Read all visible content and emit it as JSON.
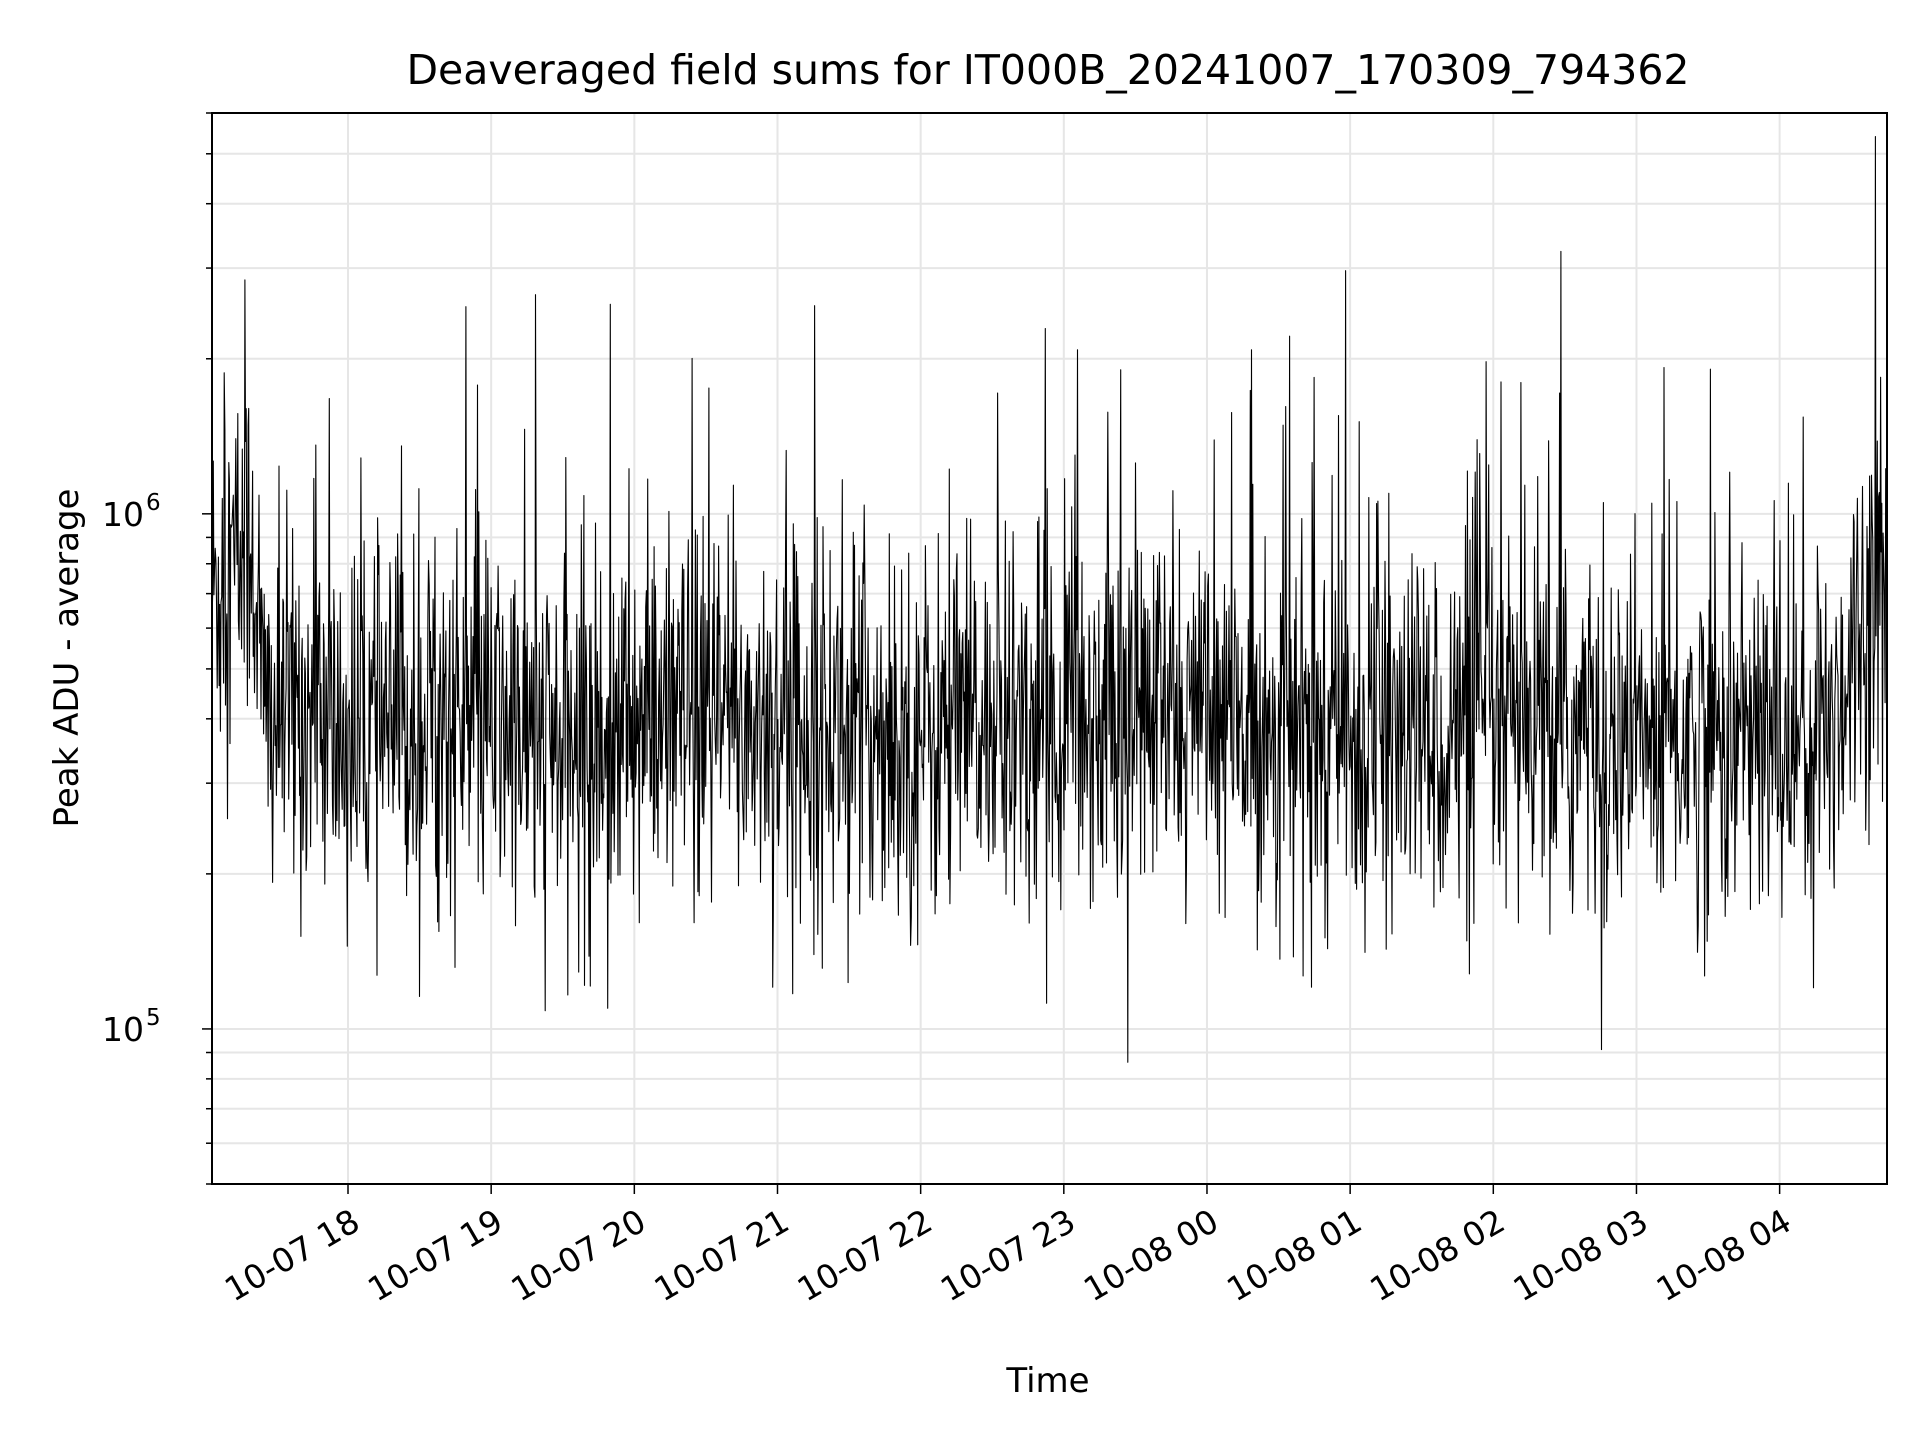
{
  "chart_data": {
    "type": "line",
    "title": "Deaveraged field sums for IT000B_20241007_170309_794362",
    "xlabel": "Time",
    "ylabel": "Peak ADU - average",
    "yscale": "log",
    "ylim": [
      50000,
      6000000
    ],
    "xlim": [
      "2024-10-07 17:03",
      "2024-10-08 04:45"
    ],
    "grid": true,
    "line_color": "#000000",
    "grid_color": "#e6e6e6",
    "x_ticks": [
      {
        "value": "2024-10-07 18:00",
        "label": "10-07 18"
      },
      {
        "value": "2024-10-07 19:00",
        "label": "10-07 19"
      },
      {
        "value": "2024-10-07 20:00",
        "label": "10-07 20"
      },
      {
        "value": "2024-10-07 21:00",
        "label": "10-07 21"
      },
      {
        "value": "2024-10-07 22:00",
        "label": "10-07 22"
      },
      {
        "value": "2024-10-07 23:00",
        "label": "10-07 23"
      },
      {
        "value": "2024-10-08 00:00",
        "label": "10-08 00"
      },
      {
        "value": "2024-10-08 01:00",
        "label": "10-08 01"
      },
      {
        "value": "2024-10-08 02:00",
        "label": "10-08 02"
      },
      {
        "value": "2024-10-08 03:00",
        "label": "10-08 03"
      },
      {
        "value": "2024-10-08 04:00",
        "label": "10-08 04"
      }
    ],
    "y_ticks": [
      {
        "value": 100000,
        "base": "10",
        "exp": "5"
      },
      {
        "value": 1000000,
        "base": "10",
        "exp": "6"
      }
    ],
    "series": [
      {
        "x": [
          "2024-10-07 17:03",
          "2024-10-07 17:20",
          "2024-10-07 17:25",
          "2024-10-07 17:40",
          "2024-10-07 18:00",
          "2024-10-07 18:20",
          "2024-10-07 18:40",
          "2024-10-07 19:00",
          "2024-10-07 19:20",
          "2024-10-07 19:40",
          "2024-10-07 20:00",
          "2024-10-07 20:30",
          "2024-10-07 21:00",
          "2024-10-07 21:30",
          "2024-10-07 22:00",
          "2024-10-07 22:30",
          "2024-10-07 23:00",
          "2024-10-07 23:30",
          "2024-10-08 00:00",
          "2024-10-08 00:30",
          "2024-10-08 01:00",
          "2024-10-08 01:30",
          "2024-10-08 02:00",
          "2024-10-08 02:30",
          "2024-10-08 03:00",
          "2024-10-08 03:30",
          "2024-10-08 04:00",
          "2024-10-08 04:20",
          "2024-10-08 04:45"
        ],
        "y": [
          700000,
          900000,
          400000,
          420000,
          360000,
          380000,
          400000,
          390000,
          360000,
          350000,
          380000,
          390000,
          400000,
          390000,
          370000,
          380000,
          400000,
          420000,
          390000,
          380000,
          360000,
          370000,
          375000,
          370000,
          365000,
          370000,
          360000,
          380000,
          900000
        ]
      }
    ]
  }
}
